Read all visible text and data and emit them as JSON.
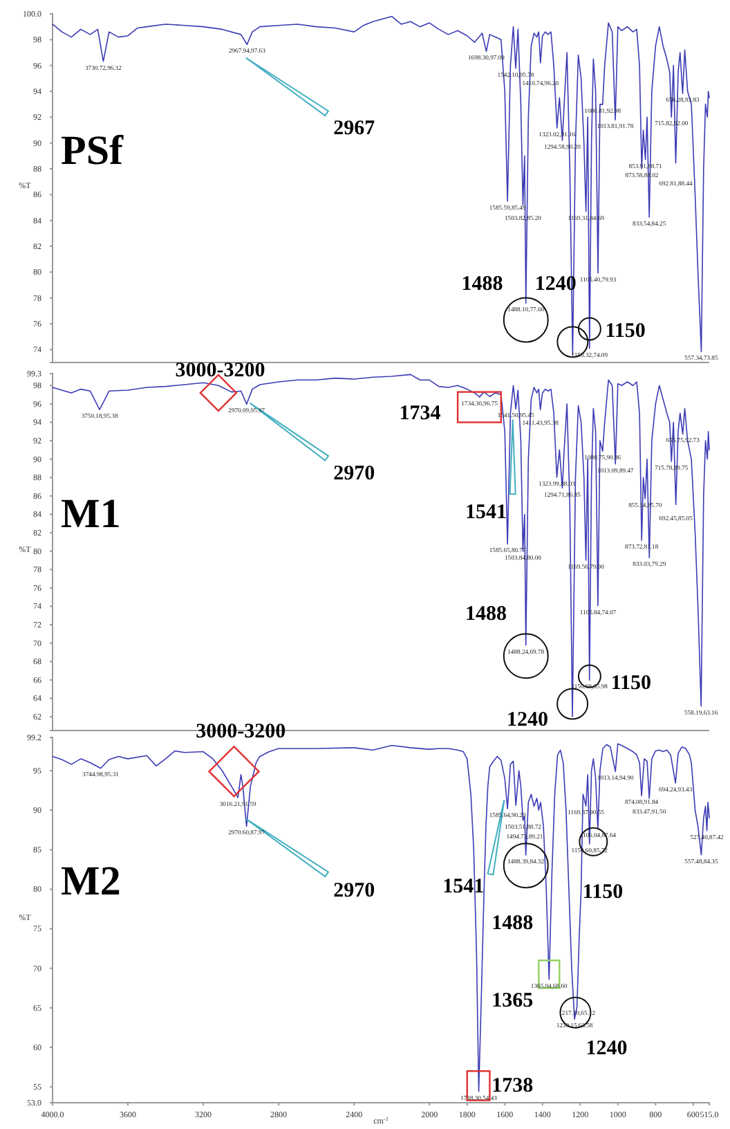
{
  "chart_data": [
    {
      "type": "line",
      "title": "PSf",
      "ylabel": "%T",
      "tick_labels": "y",
      "xlim": [
        4000,
        515
      ],
      "ylim": [
        73,
        100
      ],
      "yticks": [
        {
          "value": 100,
          "label": "100.0"
        },
        98,
        96,
        94,
        92,
        90,
        88,
        86,
        84,
        82,
        80,
        78,
        76,
        74
      ],
      "x": [
        4000,
        3950,
        3900,
        3850,
        3800,
        3760,
        3730.72,
        3700,
        3650,
        3600,
        3550,
        3500,
        3400,
        3300,
        3200,
        3100,
        3000,
        2967.94,
        2940,
        2900,
        2800,
        2700,
        2600,
        2500,
        2400,
        2350,
        2300,
        2200,
        2150,
        2100,
        2050,
        2000,
        1950,
        1900,
        1850,
        1800,
        1760,
        1720,
        1698.3,
        1680,
        1650,
        1620,
        1600,
        1585.59,
        1570,
        1555,
        1542.1,
        1530,
        1515,
        1503.82,
        1495,
        1488.1,
        1475,
        1460,
        1445,
        1430,
        1420,
        1410.74,
        1400,
        1385,
        1370,
        1355,
        1340,
        1323.02,
        1310,
        1294.58,
        1285,
        1270,
        1255,
        1240,
        1225,
        1210,
        1195,
        1180,
        1169.31,
        1160,
        1150.32,
        1140,
        1130,
        1118,
        1105.4,
        1095,
        1080.81,
        1070,
        1050,
        1030,
        1013.81,
        1000,
        980,
        950,
        920,
        900,
        885,
        873.58,
        865,
        853.91,
        845,
        833.54,
        820,
        800,
        780,
        760,
        740,
        725,
        715.82,
        705,
        692.81,
        680,
        670,
        656.28,
        645,
        630,
        610,
        590,
        575,
        557.34,
        545,
        535,
        525,
        520,
        515
      ],
      "series": [
        {
          "color": "#3b3bb5",
          "values": [
            99.2,
            98.6,
            98.2,
            98.8,
            98.4,
            98.8,
            96.32,
            98.6,
            98.2,
            98.3,
            98.9,
            99.0,
            99.2,
            99.1,
            99.0,
            98.8,
            98.4,
            97.63,
            98.6,
            99.0,
            99.1,
            99.2,
            99.0,
            98.9,
            98.6,
            99.1,
            99.4,
            99.8,
            99.2,
            99.4,
            99.0,
            99.3,
            98.8,
            98.4,
            98.7,
            98.3,
            97.8,
            98.5,
            97.09,
            98.4,
            98.2,
            98.0,
            94.0,
            85.49,
            96.0,
            99.0,
            95.78,
            98.8,
            93.0,
            85.2,
            89.0,
            77.6,
            92.0,
            97.5,
            98.5,
            98.2,
            98.6,
            96.2,
            98.3,
            98.6,
            98.4,
            98.6,
            96.0,
            91.16,
            93.5,
            90.2,
            93.0,
            97.0,
            88.0,
            73.6,
            90.0,
            96.8,
            95.0,
            90.0,
            84.69,
            92.0,
            74.09,
            90.0,
            96.5,
            94.0,
            79.93,
            93.0,
            92.98,
            96.0,
            99.3,
            98.6,
            91.78,
            99.0,
            98.7,
            99.0,
            98.6,
            98.8,
            96.0,
            88.02,
            91.0,
            88.71,
            92.0,
            84.25,
            94.0,
            97.5,
            99.0,
            97.5,
            96.5,
            95.5,
            92.0,
            96.0,
            88.44,
            95.5,
            97.0,
            93.83,
            97.2,
            94.0,
            93.0,
            86.0,
            80.0,
            73.85,
            88.0,
            93.0,
            92.0,
            94.0,
            93.5
          ]
        }
      ],
      "annotations": [
        "2967",
        "1488",
        "1240",
        "1150",
        {
          "text": "3730.72,96.32",
          "x": 3730.72,
          "y": 96.32
        },
        {
          "text": "2967.94,97.63",
          "x": 2967.94,
          "y": 97.63
        },
        {
          "text": "1698.30,97.09",
          "x": 1698.3,
          "y": 97.09
        },
        {
          "text": "1542.10,95.78",
          "x": 1542.1,
          "y": 95.78
        },
        {
          "text": "1410.74,96.20",
          "x": 1410.74,
          "y": 96.2
        },
        {
          "text": "1585.59,85.49",
          "x": 1585.59,
          "y": 85.49
        },
        {
          "text": "1503.82,85.20",
          "x": 1503.82,
          "y": 85.2
        },
        {
          "text": "1488.10,77.60",
          "x": 1488.1,
          "y": 77.6
        },
        {
          "text": "1323.02,91.16",
          "x": 1323.02,
          "y": 91.16
        },
        {
          "text": "1294.58,90.20",
          "x": 1294.58,
          "y": 90.2
        },
        {
          "text": "1169.31,84.69",
          "x": 1169.31,
          "y": 84.69
        },
        {
          "text": "1150.32,74.09",
          "x": 1150.32,
          "y": 74.09
        },
        {
          "text": "1105.40,79.93",
          "x": 1105.4,
          "y": 79.93
        },
        {
          "text": "1080.81,92.98",
          "x": 1080.81,
          "y": 92.98
        },
        {
          "text": "1013.81,91.78",
          "x": 1013.81,
          "y": 91.78
        },
        {
          "text": "853.91,88.71",
          "x": 853.91,
          "y": 88.71
        },
        {
          "text": "873.58,88.02",
          "x": 873.58,
          "y": 88.02
        },
        {
          "text": "833.54,84.25",
          "x": 833.54,
          "y": 84.25
        },
        {
          "text": "715.82,92.00",
          "x": 715.82,
          "y": 92.0
        },
        {
          "text": "692.81,88.44",
          "x": 692.81,
          "y": 88.44
        },
        {
          "text": "656.28,93.83",
          "x": 656.28,
          "y": 93.83
        },
        {
          "text": "557.34,73.85",
          "x": 557.34,
          "y": 73.85
        }
      ]
    },
    {
      "type": "line",
      "title": "M1",
      "ylabel": "%T",
      "tick_labels": "y",
      "xlim": [
        4000,
        515
      ],
      "ylim": [
        60.5,
        99.3
      ],
      "yticks": [
        99.3,
        98,
        96,
        94,
        92,
        90,
        88,
        86,
        84,
        82,
        80,
        78,
        76,
        74,
        72,
        70,
        68,
        66,
        64,
        62
      ],
      "x": [
        4000,
        3950,
        3900,
        3850,
        3800,
        3750.18,
        3700,
        3600,
        3500,
        3400,
        3300,
        3200,
        3120,
        3050,
        3000,
        2970.09,
        2940,
        2900,
        2800,
        2700,
        2600,
        2500,
        2400,
        2300,
        2200,
        2100,
        2050,
        2000,
        1950,
        1900,
        1850,
        1800,
        1760,
        1734.3,
        1710,
        1680,
        1650,
        1620,
        1600,
        1585.65,
        1570,
        1555,
        1541.5,
        1530,
        1515,
        1503.84,
        1495,
        1488.24,
        1475,
        1460,
        1445,
        1430,
        1420,
        1411.43,
        1400,
        1385,
        1370,
        1355,
        1340,
        1323.99,
        1310,
        1294.71,
        1285,
        1270,
        1255,
        1241.23,
        1225,
        1210,
        1195,
        1180,
        1169.56,
        1160,
        1150.69,
        1140,
        1130,
        1118,
        1105.84,
        1095,
        1080.75,
        1070,
        1050,
        1030,
        1013.09,
        1000,
        980,
        950,
        920,
        900,
        885,
        873.72,
        865,
        855.14,
        845,
        833.03,
        820,
        800,
        780,
        760,
        740,
        725,
        715.78,
        705,
        692.45,
        680,
        670,
        655.75,
        645,
        630,
        610,
        590,
        575,
        558.19,
        545,
        535,
        525,
        520,
        515
      ],
      "series": [
        {
          "color": "#3b3bb5",
          "values": [
            97.8,
            97.5,
            97.2,
            97.6,
            97.4,
            95.38,
            97.4,
            97.5,
            97.8,
            97.9,
            98.1,
            98.3,
            98.0,
            97.3,
            97.4,
            95.97,
            97.6,
            98.1,
            98.4,
            98.6,
            98.6,
            98.8,
            98.7,
            98.9,
            99.0,
            99.2,
            98.6,
            98.6,
            97.9,
            97.8,
            98.0,
            97.6,
            97.2,
            96.75,
            97.3,
            96.8,
            97.2,
            97.0,
            93.0,
            80.77,
            95.0,
            98.0,
            95.45,
            97.5,
            92.0,
            80.0,
            84.0,
            69.78,
            90.0,
            96.5,
            97.8,
            97.2,
            97.6,
            95.38,
            97.2,
            97.6,
            97.4,
            97.6,
            95.0,
            88.03,
            91.0,
            86.85,
            91.0,
            96.0,
            85.0,
            62.0,
            88.0,
            95.8,
            94.0,
            88.0,
            79.0,
            90.0,
            65.98,
            88.0,
            95.5,
            93.0,
            74.07,
            92.0,
            90.86,
            94.0,
            98.6,
            98.0,
            89.47,
            98.2,
            98.0,
            98.4,
            98.0,
            98.4,
            95.0,
            81.18,
            88.0,
            85.7,
            90.0,
            79.29,
            92.0,
            96.0,
            98.0,
            96.5,
            95.0,
            94.0,
            89.75,
            94.0,
            85.05,
            93.0,
            95.0,
            92.73,
            95.5,
            92.0,
            90.0,
            82.0,
            74.0,
            63.16,
            86.0,
            92.0,
            90.0,
            93.0,
            91.0
          ]
        }
      ],
      "annotations": [
        "3000-3200",
        "2970",
        "1734",
        "1541",
        "1488",
        "1150",
        "1240",
        {
          "text": "3750.18,95.38",
          "x": 3750.18,
          "y": 95.38
        },
        {
          "text": "2970.09,95.97",
          "x": 2970.09,
          "y": 95.97
        },
        {
          "text": "1734.30,96.75",
          "x": 1734.3,
          "y": 96.75
        },
        {
          "text": "1541.50,95.45",
          "x": 1541.5,
          "y": 95.45
        },
        {
          "text": "1411.43,95.38",
          "x": 1411.43,
          "y": 95.38
        },
        {
          "text": "1585.65,80.77",
          "x": 1585.65,
          "y": 80.77
        },
        {
          "text": "1503.84,80.00",
          "x": 1503.84,
          "y": 80.0
        },
        {
          "text": "1488.24,69.78",
          "x": 1488.24,
          "y": 69.78
        },
        {
          "text": "1323.99,88.03",
          "x": 1323.99,
          "y": 88.03
        },
        {
          "text": "1294.71,86.85",
          "x": 1294.71,
          "y": 86.85
        },
        {
          "text": "1169.56,79.00",
          "x": 1169.56,
          "y": 79.0
        },
        {
          "text": "1150.69,65.98",
          "x": 1150.69,
          "y": 65.98
        },
        {
          "text": "1105.84,74.07",
          "x": 1105.84,
          "y": 74.07
        },
        {
          "text": "1080.75,90.86",
          "x": 1080.75,
          "y": 90.86
        },
        {
          "text": "1013.09,89.47",
          "x": 1013.09,
          "y": 89.47
        },
        {
          "text": "855.14,85.70",
          "x": 855.14,
          "y": 85.7
        },
        {
          "text": "873.72,81.18",
          "x": 873.72,
          "y": 81.18
        },
        {
          "text": "833.03,79.29",
          "x": 833.03,
          "y": 79.29
        },
        {
          "text": "715.78,89.75",
          "x": 715.78,
          "y": 89.75
        },
        {
          "text": "692.45,85.05",
          "x": 692.45,
          "y": 85.05
        },
        {
          "text": "655.75,92.73",
          "x": 655.75,
          "y": 92.73
        },
        {
          "text": "558.19,63.16",
          "x": 558.19,
          "y": 63.16
        }
      ]
    },
    {
      "type": "line",
      "title": "M2",
      "ylabel": "%T",
      "xlabel": "cm$^{-1}$",
      "xlim": [
        4000,
        515
      ],
      "xticks": [
        {
          "value": 4000,
          "label": "4000.0"
        },
        3600,
        3200,
        2800,
        2400,
        2000,
        1800,
        1600,
        1400,
        1200,
        1000,
        800,
        600,
        {
          "value": 515,
          "label": "515.0"
        }
      ],
      "ylim": [
        53,
        99.2
      ],
      "yticks": [
        99.2,
        95,
        90,
        85,
        80,
        75,
        70,
        65,
        60,
        55,
        {
          "value": 53,
          "label": "53.0"
        }
      ],
      "x": [
        4000,
        3950,
        3900,
        3850,
        3800,
        3744.98,
        3700,
        3650,
        3600,
        3500,
        3450,
        3400,
        3350,
        3300,
        3200,
        3150,
        3100,
        3050,
        3016.21,
        3000,
        2990,
        2970.6,
        2950,
        2920,
        2900,
        2850,
        2800,
        2600,
        2400,
        2300,
        2200,
        2100,
        2000,
        1950,
        1900,
        1850,
        1820,
        1800,
        1780,
        1765,
        1750,
        1738.3,
        1725,
        1710,
        1700,
        1690,
        1680,
        1660,
        1640,
        1620,
        1600,
        1585.64,
        1570,
        1555,
        1541.39,
        1525,
        1515,
        1503.51,
        1494.73,
        1488.39,
        1475,
        1460,
        1445,
        1430,
        1420,
        1410,
        1395,
        1380,
        1365.04,
        1350,
        1335,
        1320,
        1305,
        1290,
        1275,
        1260,
        1245,
        1230.15,
        1217.1,
        1205,
        1195,
        1185,
        1169.37,
        1160,
        1150.6,
        1140,
        1130,
        1118,
        1106.04,
        1095,
        1080,
        1060,
        1040,
        1013.14,
        1000,
        980,
        950,
        920,
        900,
        885,
        874.08,
        860,
        845,
        833.47,
        820,
        800,
        780,
        760,
        740,
        720,
        694.24,
        680,
        660,
        640,
        620,
        610,
        600,
        590,
        575,
        557.48,
        545,
        535,
        527.4,
        522,
        518,
        515
      ],
      "series": [
        {
          "color": "#3b3bb5",
          "values": [
            96.8,
            96.4,
            95.8,
            96.5,
            96.0,
            95.31,
            96.4,
            96.8,
            96.5,
            96.9,
            95.6,
            96.5,
            97.5,
            97.3,
            97.4,
            96.5,
            95.0,
            93.0,
            91.59,
            94.5,
            93.0,
            87.97,
            93.0,
            96.0,
            96.8,
            97.4,
            97.8,
            97.8,
            97.9,
            97.6,
            98.2,
            97.9,
            97.7,
            97.8,
            97.8,
            97.6,
            97.4,
            96.5,
            92.0,
            85.0,
            72.0,
            54.43,
            66.0,
            80.0,
            88.0,
            93.0,
            95.5,
            96.2,
            96.8,
            96.3,
            94.0,
            90.2,
            95.8,
            96.2,
            90.6,
            95.0,
            93.0,
            88.72,
            89.21,
            84.32,
            91.0,
            92.0,
            90.5,
            91.5,
            90.0,
            91.0,
            88.0,
            80.0,
            68.6,
            82.0,
            92.0,
            97.0,
            97.6,
            96.0,
            90.0,
            80.0,
            70.0,
            63.58,
            65.12,
            74.0,
            80.0,
            92.0,
            90.55,
            94.5,
            85.72,
            95.0,
            96.5,
            94.0,
            87.64,
            95.0,
            97.8,
            98.3,
            98.0,
            94.9,
            98.4,
            98.2,
            97.8,
            97.4,
            97.0,
            96.0,
            91.84,
            96.5,
            96.2,
            91.5,
            96.5,
            97.5,
            97.6,
            97.4,
            97.6,
            97.0,
            93.43,
            97.2,
            98.0,
            97.8,
            97.0,
            96.0,
            93.0,
            90.0,
            88.0,
            84.35,
            89.0,
            90.5,
            87.42,
            91.0,
            90.0,
            89.0
          ]
        }
      ],
      "annotations": [
        "3000-3200",
        "2970",
        "1541",
        "1488",
        "1150",
        "1365",
        "1240",
        "1738",
        {
          "text": "3744.98,95.31",
          "x": 3744.98,
          "y": 95.31
        },
        {
          "text": "3016.21,91.59",
          "x": 3016.21,
          "y": 91.59
        },
        {
          "text": "2970.60,87.97",
          "x": 2970.6,
          "y": 87.97
        },
        {
          "text": "1585.64,90.20",
          "x": 1585.64,
          "y": 90.2
        },
        {
          "text": "1503.51,88.72",
          "x": 1503.51,
          "y": 88.72
        },
        {
          "text": "1494.73,89.21",
          "x": 1494.73,
          "y": 89.21
        },
        {
          "text": "1488.39,84.32",
          "x": 1488.39,
          "y": 84.32
        },
        {
          "text": "1365.04,68.60",
          "x": 1365.04,
          "y": 68.6
        },
        {
          "text": "1217.10,65.12",
          "x": 1217.1,
          "y": 65.12
        },
        {
          "text": "1230.15,63.58",
          "x": 1230.15,
          "y": 63.58
        },
        {
          "text": "1169.37,90.55",
          "x": 1169.37,
          "y": 90.55
        },
        {
          "text": "1150.60,85.72",
          "x": 1150.6,
          "y": 85.72
        },
        {
          "text": "1106.04,87.64",
          "x": 1106.04,
          "y": 87.64
        },
        {
          "text": "1013.14,94.90",
          "x": 1013.14,
          "y": 94.9
        },
        {
          "text": "874.08,91.84",
          "x": 874.08,
          "y": 91.84
        },
        {
          "text": "833.47,91.50",
          "x": 833.47,
          "y": 91.5
        },
        {
          "text": "694.24,93.43",
          "x": 694.24,
          "y": 93.43
        },
        {
          "text": "527.40,87.42",
          "x": 527.4,
          "y": 87.42
        },
        {
          "text": "557.48,84.35",
          "x": 557.48,
          "y": 84.35
        },
        {
          "text": "1738.30,54.43",
          "x": 1738.3,
          "y": 54.43
        }
      ]
    }
  ]
}
